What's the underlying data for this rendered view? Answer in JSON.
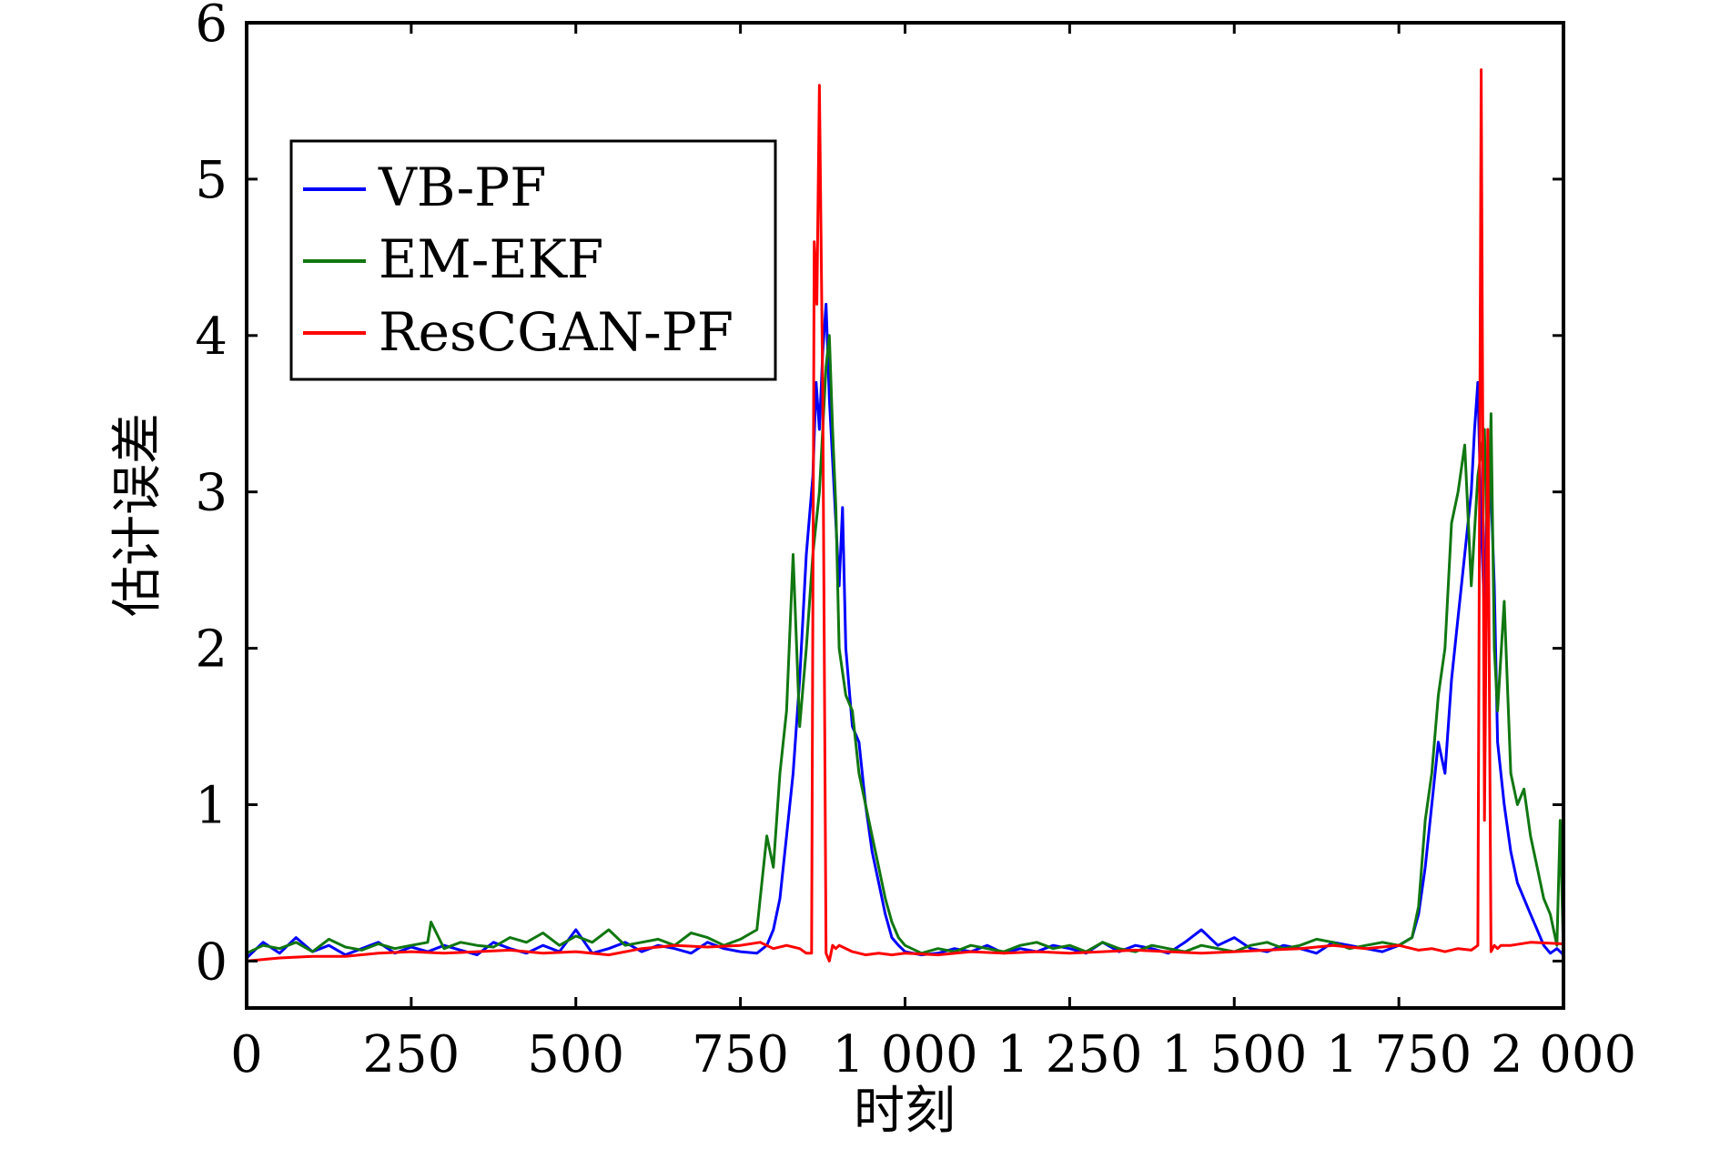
{
  "chart_data": {
    "type": "line",
    "title": "",
    "xlabel": "时刻",
    "ylabel": "估计误差",
    "xlim": [
      0,
      2000
    ],
    "ylim": [
      -0.3,
      6
    ],
    "xticks": [
      0,
      250,
      500,
      750,
      1000,
      1250,
      1500,
      1750,
      2000
    ],
    "xtick_labels": [
      "0",
      "250",
      "500",
      "750",
      "1 000",
      "1 250",
      "1 500",
      "1 750",
      "2 000"
    ],
    "yticks": [
      0,
      1,
      2,
      3,
      4,
      5,
      6
    ],
    "ytick_labels": [
      "0",
      "1",
      "2",
      "3",
      "4",
      "5",
      "6"
    ],
    "grid": false,
    "legend": "upper-left",
    "series": [
      {
        "name": "VB-PF",
        "color": "#0000ff",
        "x": [
          0,
          25,
          50,
          75,
          100,
          125,
          150,
          175,
          200,
          225,
          250,
          275,
          300,
          325,
          350,
          375,
          400,
          425,
          450,
          475,
          500,
          525,
          550,
          575,
          600,
          625,
          650,
          675,
          700,
          725,
          750,
          775,
          790,
          800,
          810,
          820,
          830,
          840,
          850,
          860,
          865,
          870,
          875,
          880,
          885,
          890,
          895,
          900,
          905,
          910,
          920,
          930,
          940,
          950,
          960,
          970,
          980,
          990,
          1000,
          1025,
          1050,
          1075,
          1100,
          1125,
          1150,
          1175,
          1200,
          1225,
          1250,
          1275,
          1300,
          1325,
          1350,
          1375,
          1400,
          1425,
          1450,
          1475,
          1500,
          1525,
          1550,
          1575,
          1600,
          1625,
          1650,
          1675,
          1700,
          1725,
          1750,
          1770,
          1780,
          1790,
          1800,
          1810,
          1820,
          1830,
          1840,
          1850,
          1860,
          1865,
          1870,
          1875,
          1880,
          1885,
          1890,
          1895,
          1900,
          1910,
          1920,
          1930,
          1940,
          1950,
          1960,
          1970,
          1980,
          1990,
          2000
        ],
        "y": [
          0.02,
          0.12,
          0.05,
          0.15,
          0.06,
          0.1,
          0.04,
          0.08,
          0.12,
          0.05,
          0.09,
          0.06,
          0.1,
          0.07,
          0.04,
          0.12,
          0.08,
          0.05,
          0.1,
          0.06,
          0.2,
          0.05,
          0.08,
          0.12,
          0.06,
          0.1,
          0.08,
          0.05,
          0.12,
          0.08,
          0.06,
          0.05,
          0.1,
          0.2,
          0.4,
          0.8,
          1.2,
          1.8,
          2.6,
          3.1,
          3.7,
          3.4,
          3.9,
          4.2,
          3.6,
          3.2,
          2.8,
          2.4,
          2.9,
          2.0,
          1.5,
          1.4,
          1.0,
          0.7,
          0.5,
          0.3,
          0.15,
          0.1,
          0.06,
          0.04,
          0.05,
          0.08,
          0.06,
          0.1,
          0.05,
          0.08,
          0.06,
          0.1,
          0.08,
          0.05,
          0.12,
          0.06,
          0.1,
          0.08,
          0.05,
          0.12,
          0.2,
          0.1,
          0.15,
          0.08,
          0.06,
          0.1,
          0.08,
          0.05,
          0.12,
          0.1,
          0.08,
          0.06,
          0.1,
          0.15,
          0.3,
          0.6,
          1.0,
          1.4,
          1.2,
          1.8,
          2.2,
          2.6,
          3.0,
          3.4,
          3.7,
          2.8,
          2.2,
          3.2,
          3.0,
          2.4,
          1.4,
          1.0,
          0.7,
          0.5,
          0.4,
          0.3,
          0.2,
          0.1,
          0.05,
          0.08,
          0.04
        ]
      },
      {
        "name": "EM-EKF",
        "color": "#117711",
        "x": [
          0,
          25,
          50,
          75,
          100,
          125,
          150,
          175,
          200,
          225,
          250,
          275,
          280,
          300,
          325,
          350,
          375,
          400,
          425,
          450,
          475,
          500,
          525,
          550,
          575,
          600,
          625,
          650,
          675,
          700,
          725,
          750,
          775,
          790,
          800,
          810,
          820,
          830,
          840,
          850,
          860,
          870,
          880,
          885,
          890,
          895,
          900,
          910,
          920,
          930,
          940,
          950,
          960,
          970,
          980,
          990,
          1000,
          1025,
          1050,
          1075,
          1100,
          1125,
          1150,
          1175,
          1200,
          1225,
          1250,
          1275,
          1300,
          1325,
          1350,
          1375,
          1400,
          1425,
          1450,
          1475,
          1500,
          1525,
          1550,
          1575,
          1600,
          1625,
          1650,
          1675,
          1700,
          1725,
          1750,
          1770,
          1780,
          1790,
          1800,
          1810,
          1820,
          1830,
          1840,
          1850,
          1860,
          1870,
          1880,
          1885,
          1890,
          1895,
          1900,
          1910,
          1920,
          1930,
          1940,
          1950,
          1960,
          1970,
          1980,
          1990,
          1995,
          2000
        ],
        "y": [
          0.05,
          0.1,
          0.08,
          0.12,
          0.06,
          0.14,
          0.09,
          0.07,
          0.11,
          0.08,
          0.1,
          0.12,
          0.25,
          0.08,
          0.12,
          0.1,
          0.09,
          0.15,
          0.12,
          0.18,
          0.1,
          0.16,
          0.12,
          0.2,
          0.1,
          0.12,
          0.14,
          0.1,
          0.18,
          0.15,
          0.1,
          0.14,
          0.2,
          0.8,
          0.6,
          1.2,
          1.6,
          2.6,
          1.5,
          2.0,
          2.6,
          3.0,
          3.8,
          4.0,
          3.4,
          2.9,
          2.0,
          1.7,
          1.6,
          1.2,
          1.0,
          0.8,
          0.6,
          0.4,
          0.25,
          0.15,
          0.1,
          0.05,
          0.08,
          0.06,
          0.1,
          0.08,
          0.06,
          0.1,
          0.12,
          0.08,
          0.1,
          0.06,
          0.12,
          0.08,
          0.06,
          0.1,
          0.08,
          0.06,
          0.1,
          0.08,
          0.06,
          0.1,
          0.12,
          0.08,
          0.1,
          0.14,
          0.12,
          0.08,
          0.1,
          0.12,
          0.1,
          0.15,
          0.35,
          0.9,
          1.2,
          1.7,
          2.0,
          2.8,
          3.0,
          3.3,
          2.4,
          3.1,
          3.4,
          2.5,
          3.5,
          2.0,
          1.6,
          2.3,
          1.2,
          1.0,
          1.1,
          0.8,
          0.6,
          0.4,
          0.3,
          0.1,
          0.9,
          0.05
        ]
      },
      {
        "name": "ResCGAN-PF",
        "color": "#ff0000",
        "x": [
          0,
          50,
          100,
          150,
          200,
          250,
          300,
          350,
          400,
          450,
          500,
          550,
          600,
          650,
          700,
          750,
          780,
          800,
          820,
          840,
          850,
          858,
          862,
          866,
          870,
          875,
          880,
          885,
          890,
          895,
          900,
          920,
          940,
          960,
          980,
          1000,
          1050,
          1100,
          1150,
          1200,
          1250,
          1300,
          1350,
          1400,
          1450,
          1500,
          1550,
          1600,
          1650,
          1700,
          1750,
          1780,
          1800,
          1820,
          1840,
          1860,
          1870,
          1875,
          1880,
          1885,
          1890,
          1895,
          1900,
          1905,
          1920,
          1950,
          2000
        ],
        "y": [
          0.0,
          0.02,
          0.03,
          0.03,
          0.05,
          0.06,
          0.05,
          0.06,
          0.07,
          0.05,
          0.06,
          0.04,
          0.08,
          0.1,
          0.09,
          0.1,
          0.12,
          0.08,
          0.1,
          0.08,
          0.05,
          0.05,
          4.6,
          4.2,
          5.6,
          3.6,
          0.05,
          0.0,
          0.1,
          0.08,
          0.1,
          0.06,
          0.04,
          0.05,
          0.04,
          0.05,
          0.04,
          0.06,
          0.05,
          0.06,
          0.05,
          0.06,
          0.07,
          0.06,
          0.05,
          0.06,
          0.07,
          0.08,
          0.1,
          0.08,
          0.1,
          0.07,
          0.08,
          0.06,
          0.08,
          0.07,
          0.1,
          5.7,
          0.9,
          3.4,
          0.06,
          0.1,
          0.08,
          0.1,
          0.1,
          0.12,
          0.11
        ]
      }
    ]
  }
}
